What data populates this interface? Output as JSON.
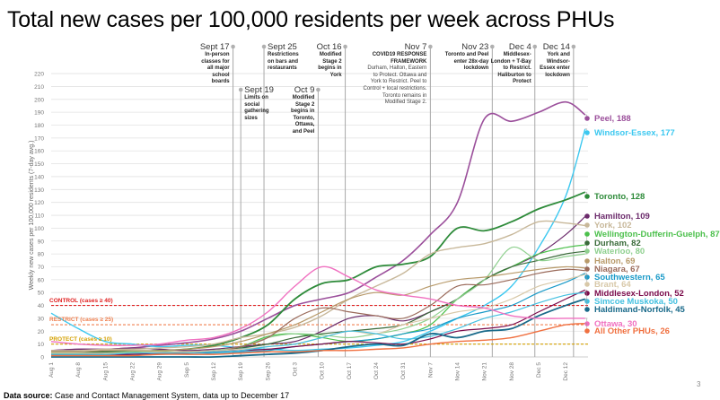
{
  "title": "Total new cases per 100,000 residents per week across PHUs",
  "footer": {
    "source_label": "Data source:",
    "source_text": " Case and Contact Management System, data up to December 17",
    "page_number": "3"
  },
  "chart_data": {
    "type": "line",
    "title": "Total new cases per 100,000 residents per week across PHUs",
    "ylabel": "Weekly new cases per 100,000 residents (7-day avg.)",
    "xlabel": "",
    "ylim": [
      0,
      220
    ],
    "yticks": [
      "0",
      "10",
      "20",
      "30",
      "40",
      "50",
      "60",
      "70",
      "80",
      "90",
      "100",
      "110",
      "120",
      "130",
      "140",
      "150",
      "160",
      "170",
      "180",
      "190",
      "200",
      "210",
      "220"
    ],
    "xticks": [
      "Aug 1",
      "Aug 8",
      "Aug 15",
      "Aug 22",
      "Aug 29",
      "Sep 5",
      "Sep 12",
      "Sep 19",
      "Sep 26",
      "Oct 3",
      "Oct 10",
      "Oct 17",
      "Oct 24",
      "Oct 31",
      "Nov 7",
      "Nov 14",
      "Nov 21",
      "Nov 28",
      "Dec 5",
      "Dec 12"
    ],
    "x_days_since_aug1": [
      0,
      7,
      14,
      21,
      28,
      35,
      42,
      49,
      56,
      63,
      70,
      77,
      84,
      91,
      98,
      105,
      112,
      119,
      126,
      133,
      138
    ],
    "grid": true,
    "thresholds": [
      {
        "label": "CONTROL (cases ≥ 40)",
        "value": 40,
        "color": "#e02020"
      },
      {
        "label": "RESTRICT (cases ≥ 25)",
        "value": 25,
        "color": "#f08050"
      },
      {
        "label": "PROTECT (cases ≥ 10)",
        "value": 10,
        "color": "#d4a000"
      }
    ],
    "events": [
      {
        "date": "Sept 17",
        "day": 47,
        "lines": [
          "In-person",
          "classes for",
          "all major",
          "school",
          "boards"
        ]
      },
      {
        "date": "Sept 19",
        "day": 49,
        "lines": [
          "Limits on",
          "social",
          "gathering",
          "sizes"
        ]
      },
      {
        "date": "Sept 25",
        "day": 55,
        "lines": [
          "Restrictions",
          "on bars and",
          "restaurants"
        ]
      },
      {
        "date": "Oct 9",
        "day": 69,
        "lines": [
          "Modified",
          "Stage 2",
          "begins in",
          "Toronto,",
          "Ottawa,",
          "and Peel"
        ]
      },
      {
        "date": "Oct 16",
        "day": 76,
        "lines": [
          "Modified",
          "Stage 2",
          "begins in",
          "York"
        ]
      },
      {
        "date": "Nov 7",
        "day": 98,
        "lines": [
          "COVID19 RESPONSE",
          "FRAMEWORK"
        ],
        "detail": [
          "Durham, Halton, Eastern",
          "to Protect. Ottawa and",
          "York to Restrict. Peel to",
          "Control + local restrictions.",
          "Toronto remains in",
          "Modified Stage 2."
        ]
      },
      {
        "date": "Nov 23",
        "day": 114,
        "lines": [
          "Toronto and Peel",
          "enter 28x-day",
          "lockdown"
        ]
      },
      {
        "date": "Dec 4",
        "day": 125,
        "lines": [
          "Middlesex-",
          "London + T-Bay",
          "to Restrict.",
          "Haliburton to",
          "Protect"
        ]
      },
      {
        "date": "Dec 14",
        "day": 135,
        "lines": [
          "York and",
          "Windsor-",
          "Essex enter",
          "lockdown"
        ]
      }
    ],
    "series": [
      {
        "name": "Peel",
        "label": "Peel, 188",
        "color": "#9b4f9b",
        "width": 1.6,
        "values": [
          5,
          6,
          6,
          7,
          9,
          11,
          14,
          20,
          30,
          40,
          45,
          50,
          62,
          75,
          95,
          120,
          185,
          183,
          190,
          198,
          188
        ]
      },
      {
        "name": "Windsor-Essex",
        "label": "Windsor-Essex, 177",
        "color": "#3cc8f0",
        "width": 1.4,
        "values": [
          34,
          22,
          12,
          10,
          8,
          9,
          9,
          7,
          6,
          5,
          6,
          7,
          9,
          12,
          20,
          30,
          40,
          55,
          85,
          125,
          177
        ]
      },
      {
        "name": "Toronto",
        "label": "Toronto, 128",
        "color": "#2e8b3a",
        "width": 1.8,
        "values": [
          3,
          3,
          4,
          4,
          5,
          6,
          9,
          15,
          25,
          45,
          57,
          60,
          70,
          72,
          78,
          100,
          98,
          105,
          115,
          122,
          128
        ]
      },
      {
        "name": "Hamilton",
        "label": "Hamilton, 109",
        "color": "#6b2a6b",
        "width": 1.2,
        "values": [
          5,
          6,
          6,
          7,
          6,
          5,
          6,
          8,
          10,
          12,
          20,
          30,
          32,
          28,
          35,
          45,
          60,
          70,
          80,
          95,
          109
        ]
      },
      {
        "name": "York",
        "label": "York, 102",
        "color": "#c8b89a",
        "width": 1.4,
        "values": [
          5,
          5,
          6,
          6,
          7,
          8,
          10,
          15,
          18,
          23,
          32,
          45,
          55,
          65,
          80,
          85,
          88,
          95,
          105,
          104,
          102
        ]
      },
      {
        "name": "Wellington-Dufferin-Guelph",
        "label": "Wellington-Dufferin-Guelph, 87",
        "color": "#4cc04c",
        "width": 1.2,
        "values": [
          3,
          3,
          3,
          3,
          3,
          4,
          5,
          8,
          16,
          18,
          15,
          12,
          14,
          18,
          25,
          45,
          60,
          70,
          80,
          85,
          87
        ]
      },
      {
        "name": "Durham",
        "label": "Durham, 82",
        "color": "#3a6b3a",
        "width": 1.2,
        "values": [
          4,
          4,
          4,
          4,
          4,
          4,
          5,
          7,
          10,
          15,
          18,
          20,
          22,
          25,
          35,
          45,
          60,
          70,
          75,
          80,
          82
        ]
      },
      {
        "name": "Waterloo",
        "label": "Waterloo, 80",
        "color": "#8fd08f",
        "width": 1.2,
        "values": [
          3,
          3,
          3,
          4,
          4,
          4,
          5,
          8,
          15,
          18,
          17,
          15,
          18,
          22,
          30,
          45,
          60,
          85,
          75,
          78,
          80
        ]
      },
      {
        "name": "Halton",
        "label": "Halton, 69",
        "color": "#b89a6a",
        "width": 1.2,
        "values": [
          4,
          4,
          5,
          5,
          5,
          6,
          8,
          12,
          18,
          25,
          35,
          45,
          50,
          48,
          55,
          60,
          62,
          65,
          68,
          70,
          69
        ]
      },
      {
        "name": "Niagara",
        "label": "Niagara, 67",
        "color": "#9a6a5a",
        "width": 1.2,
        "values": [
          2,
          2,
          2,
          3,
          3,
          3,
          4,
          8,
          15,
          30,
          38,
          35,
          32,
          30,
          40,
          55,
          56,
          60,
          65,
          68,
          67
        ]
      },
      {
        "name": "Southwestern",
        "label": "Southwestern, 65",
        "color": "#1a9ac8",
        "width": 1.2,
        "values": [
          2,
          2,
          2,
          2,
          2,
          3,
          3,
          4,
          5,
          8,
          10,
          12,
          14,
          18,
          22,
          30,
          35,
          40,
          50,
          58,
          65
        ]
      },
      {
        "name": "Brant",
        "label": "Brant, 64",
        "color": "#d8c8a8",
        "width": 1.2,
        "values": [
          3,
          3,
          3,
          3,
          4,
          4,
          5,
          6,
          8,
          10,
          15,
          20,
          18,
          25,
          30,
          35,
          38,
          45,
          55,
          60,
          64
        ]
      },
      {
        "name": "Middlesex-London",
        "label": "Middlesex-London, 52",
        "color": "#7a0a4a",
        "width": 1.2,
        "values": [
          2,
          2,
          2,
          2,
          3,
          3,
          4,
          5,
          6,
          8,
          10,
          12,
          11,
          10,
          14,
          20,
          22,
          25,
          35,
          45,
          52
        ]
      },
      {
        "name": "Simcoe Muskoka",
        "label": "Simcoe Muskoka, 50",
        "color": "#44c0e0",
        "width": 1.2,
        "values": [
          2,
          2,
          2,
          3,
          3,
          3,
          4,
          5,
          8,
          10,
          15,
          20,
          18,
          14,
          16,
          22,
          30,
          35,
          42,
          48,
          50
        ]
      },
      {
        "name": "Haldimand-Norfolk",
        "label": "Haldimand-Norfolk, 45",
        "color": "#1a6a8a",
        "width": 1.8,
        "values": [
          0,
          0,
          0,
          0,
          0,
          0,
          0,
          1,
          2,
          3,
          5,
          8,
          10,
          9,
          18,
          15,
          20,
          22,
          32,
          40,
          45
        ]
      },
      {
        "name": "Ottawa",
        "label": "Ottawa, 30",
        "color": "#f070c0",
        "width": 1.4,
        "values": [
          12,
          10,
          9,
          9,
          10,
          13,
          15,
          22,
          35,
          55,
          70,
          62,
          52,
          48,
          45,
          40,
          38,
          32,
          30,
          30,
          30
        ]
      },
      {
        "name": "All Other PHUs",
        "label": "All Other PHUs, 26",
        "color": "#f07040",
        "width": 1.4,
        "values": [
          1,
          1,
          1,
          1,
          2,
          2,
          2,
          3,
          4,
          4,
          5,
          5,
          6,
          7,
          10,
          12,
          13,
          15,
          20,
          25,
          26
        ]
      }
    ]
  }
}
